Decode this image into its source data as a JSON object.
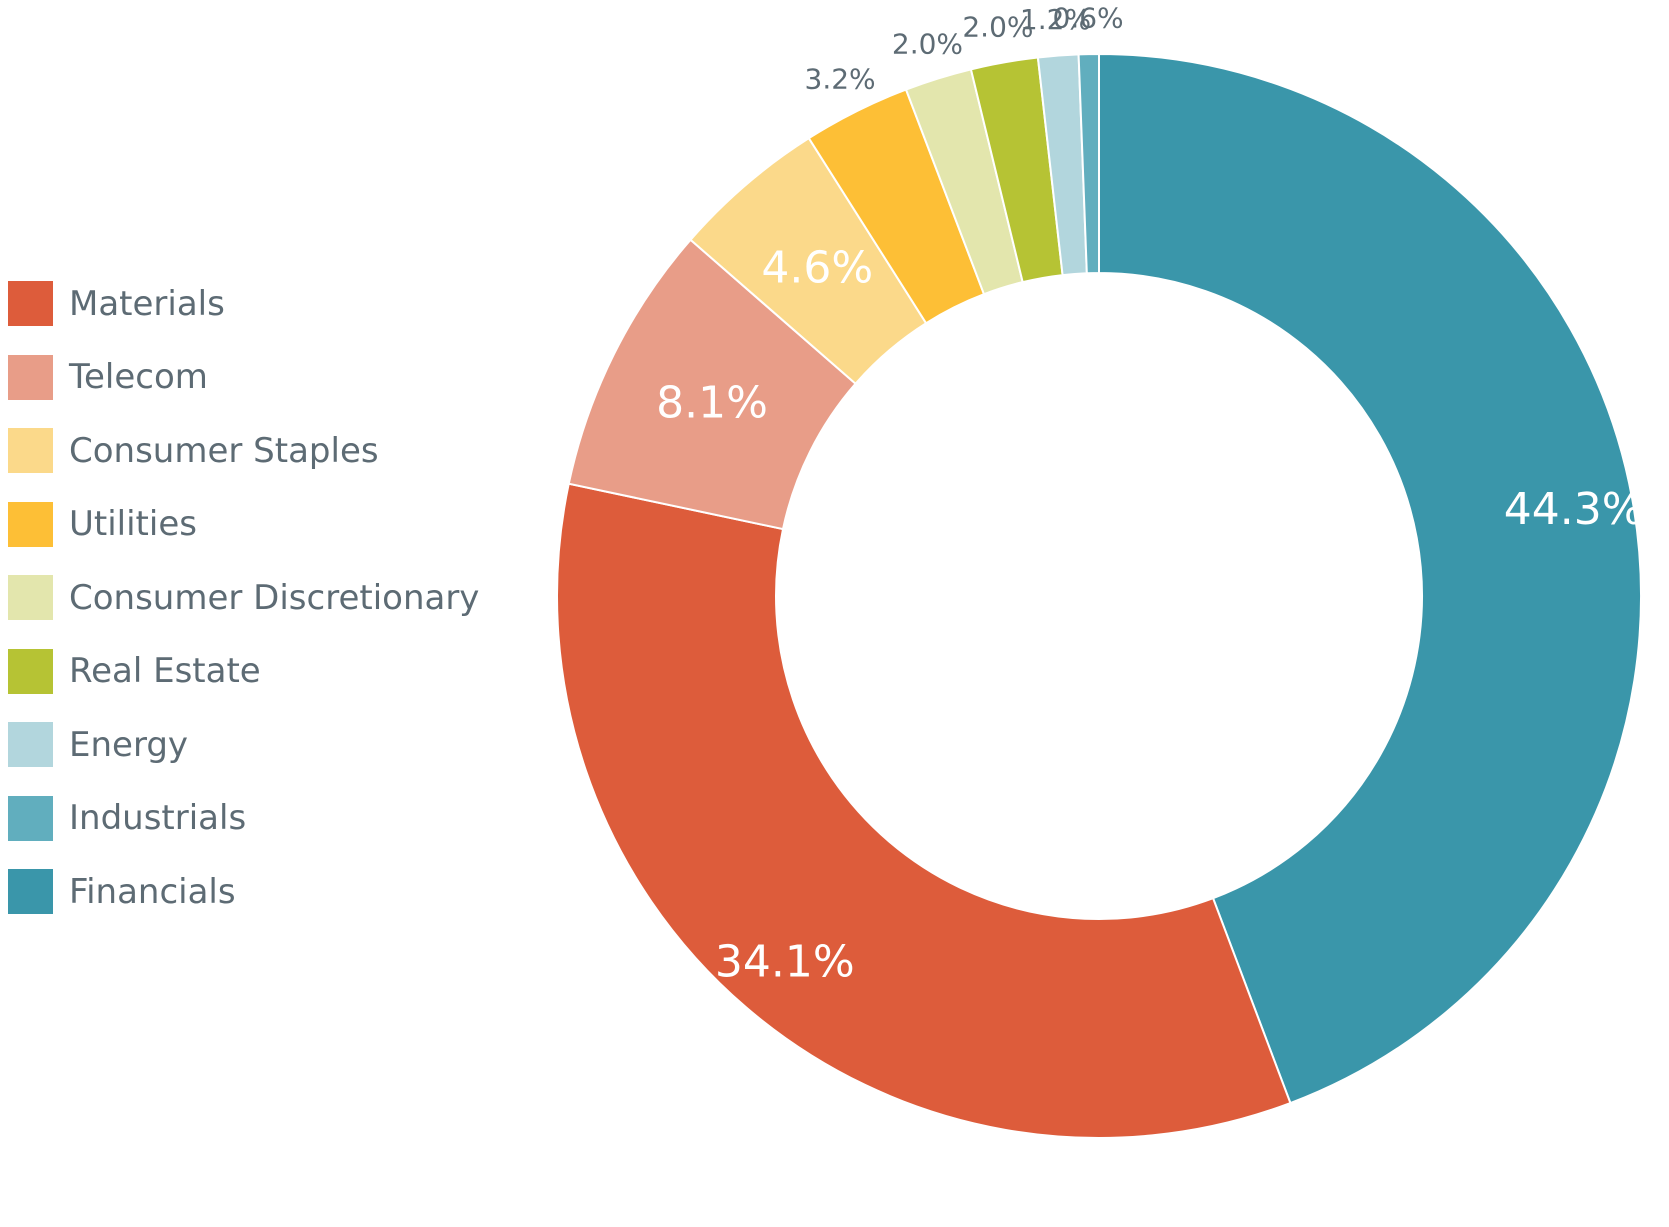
{
  "chart_data": {
    "type": "pie",
    "variant": "donut",
    "title": "",
    "legend_position": "left",
    "categories": [
      "Materials",
      "Telecom",
      "Consumer Staples",
      "Utilities",
      "Consumer Discretionary",
      "Real Estate",
      "Energy",
      "Industrials",
      "Financials"
    ],
    "values": [
      34.1,
      8.1,
      4.6,
      3.2,
      2.0,
      2.0,
      1.2,
      0.6,
      44.3
    ],
    "labels": [
      "34.1%",
      "8.1%",
      "4.6%",
      "3.2%",
      "2.0%",
      "2.0%",
      "1.2%",
      "0.6%",
      "44.3%"
    ],
    "colors": [
      "#dd5c3b",
      "#e89d88",
      "#fbd98a",
      "#fdbf36",
      "#e3e6ad",
      "#b6c334",
      "#b2d6dd",
      "#61aebe",
      "#3a96aa"
    ],
    "label_colors": [
      "#ffffff",
      "#ffffff",
      "#c68a14",
      "#5d6b74",
      "#5d6b74",
      "#5d6b74",
      "#5d6b74",
      "#5d6b74",
      "#ffffff"
    ],
    "slice_order_clockwise_from_top": [
      "Financials",
      "Materials",
      "Telecom",
      "Consumer Staples",
      "Utilities",
      "Consumer Discretionary",
      "Real Estate",
      "Energy",
      "Industrials"
    ]
  }
}
